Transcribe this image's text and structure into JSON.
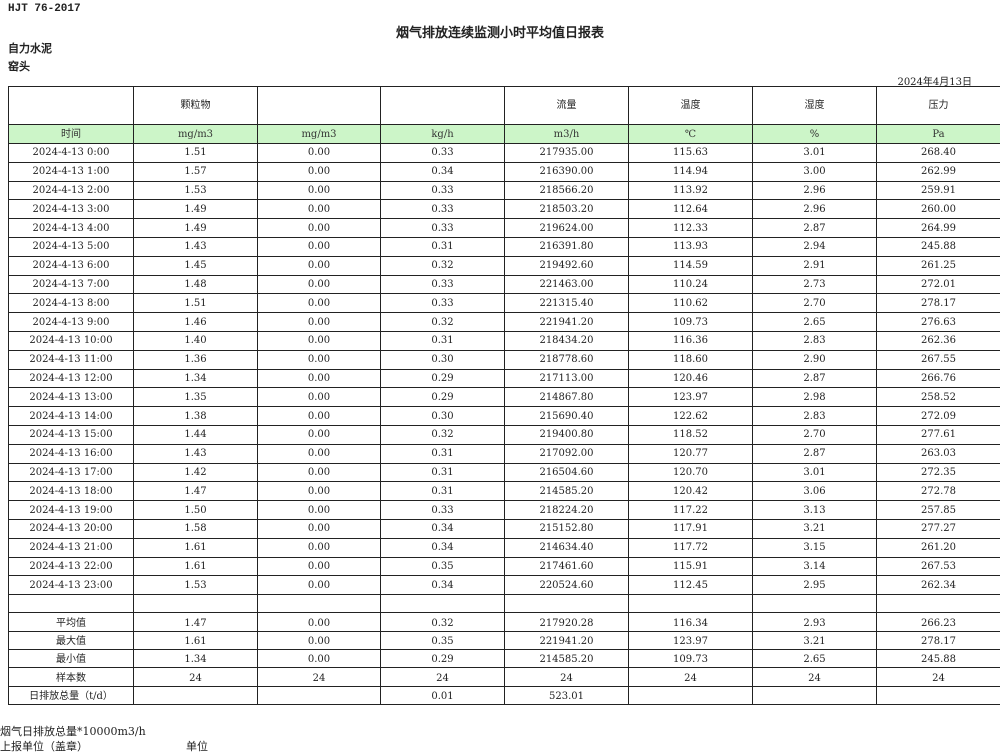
{
  "standard": "HJT  76-2017",
  "title": "烟气排放连续监测小时平均值日报表",
  "company": "自力水泥",
  "unit_name": "窑头",
  "date": "2024年4月13日",
  "header": [
    "",
    "颗粒物",
    "",
    "",
    "流量",
    "温度",
    "湿度",
    "压力"
  ],
  "units": [
    "时间",
    "mg/m3",
    "mg/m3",
    "kg/h",
    "m3/h",
    "℃",
    "%",
    "Pa"
  ],
  "rows": [
    [
      "2024-4-13 0:00",
      "1.51",
      "0.00",
      "0.33",
      "217935.00",
      "115.63",
      "3.01",
      "268.40"
    ],
    [
      "2024-4-13 1:00",
      "1.57",
      "0.00",
      "0.34",
      "216390.00",
      "114.94",
      "3.00",
      "262.99"
    ],
    [
      "2024-4-13 2:00",
      "1.53",
      "0.00",
      "0.33",
      "218566.20",
      "113.92",
      "2.96",
      "259.91"
    ],
    [
      "2024-4-13 3:00",
      "1.49",
      "0.00",
      "0.33",
      "218503.20",
      "112.64",
      "2.96",
      "260.00"
    ],
    [
      "2024-4-13 4:00",
      "1.49",
      "0.00",
      "0.33",
      "219624.00",
      "112.33",
      "2.87",
      "264.99"
    ],
    [
      "2024-4-13 5:00",
      "1.43",
      "0.00",
      "0.31",
      "216391.80",
      "113.93",
      "2.94",
      "245.88"
    ],
    [
      "2024-4-13 6:00",
      "1.45",
      "0.00",
      "0.32",
      "219492.60",
      "114.59",
      "2.91",
      "261.25"
    ],
    [
      "2024-4-13 7:00",
      "1.48",
      "0.00",
      "0.33",
      "221463.00",
      "110.24",
      "2.73",
      "272.01"
    ],
    [
      "2024-4-13 8:00",
      "1.51",
      "0.00",
      "0.33",
      "221315.40",
      "110.62",
      "2.70",
      "278.17"
    ],
    [
      "2024-4-13 9:00",
      "1.46",
      "0.00",
      "0.32",
      "221941.20",
      "109.73",
      "2.65",
      "276.63"
    ],
    [
      "2024-4-13 10:00",
      "1.40",
      "0.00",
      "0.31",
      "218434.20",
      "116.36",
      "2.83",
      "262.36"
    ],
    [
      "2024-4-13 11:00",
      "1.36",
      "0.00",
      "0.30",
      "218778.60",
      "118.60",
      "2.90",
      "267.55"
    ],
    [
      "2024-4-13 12:00",
      "1.34",
      "0.00",
      "0.29",
      "217113.00",
      "120.46",
      "2.87",
      "266.76"
    ],
    [
      "2024-4-13 13:00",
      "1.35",
      "0.00",
      "0.29",
      "214867.80",
      "123.97",
      "2.98",
      "258.52"
    ],
    [
      "2024-4-13 14:00",
      "1.38",
      "0.00",
      "0.30",
      "215690.40",
      "122.62",
      "2.83",
      "272.09"
    ],
    [
      "2024-4-13 15:00",
      "1.44",
      "0.00",
      "0.32",
      "219400.80",
      "118.52",
      "2.70",
      "277.61"
    ],
    [
      "2024-4-13 16:00",
      "1.43",
      "0.00",
      "0.31",
      "217092.00",
      "120.77",
      "2.87",
      "263.03"
    ],
    [
      "2024-4-13 17:00",
      "1.42",
      "0.00",
      "0.31",
      "216504.60",
      "120.70",
      "3.01",
      "272.35"
    ],
    [
      "2024-4-13 18:00",
      "1.47",
      "0.00",
      "0.31",
      "214585.20",
      "120.42",
      "3.06",
      "272.78"
    ],
    [
      "2024-4-13 19:00",
      "1.50",
      "0.00",
      "0.33",
      "218224.20",
      "117.22",
      "3.13",
      "257.85"
    ],
    [
      "2024-4-13 20:00",
      "1.58",
      "0.00",
      "0.34",
      "215152.80",
      "117.91",
      "3.21",
      "277.27"
    ],
    [
      "2024-4-13 21:00",
      "1.61",
      "0.00",
      "0.34",
      "214634.40",
      "117.72",
      "3.15",
      "261.20"
    ],
    [
      "2024-4-13 22:00",
      "1.61",
      "0.00",
      "0.35",
      "217461.60",
      "115.91",
      "3.14",
      "267.53"
    ],
    [
      "2024-4-13 23:00",
      "1.53",
      "0.00",
      "0.34",
      "220524.60",
      "112.45",
      "2.95",
      "262.34"
    ]
  ],
  "summary": [
    [
      "平均值",
      "1.47",
      "0.00",
      "0.32",
      "217920.28",
      "116.34",
      "2.93",
      "266.23"
    ],
    [
      "最大值",
      "1.61",
      "0.00",
      "0.35",
      "221941.20",
      "123.97",
      "3.21",
      "278.17"
    ],
    [
      "最小值",
      "1.34",
      "0.00",
      "0.29",
      "214585.20",
      "109.73",
      "2.65",
      "245.88"
    ],
    [
      "样本数",
      "24",
      "24",
      "24",
      "24",
      "24",
      "24",
      "24"
    ],
    [
      "日排放总量（t/d）",
      "",
      "",
      "0.01",
      "523.01",
      "",
      "",
      ""
    ]
  ],
  "footer": {
    "flue_total": "烟气日排放总量*10000m3/h",
    "reporter": "上报单位（盖章）",
    "reporter_unit": "单位"
  }
}
